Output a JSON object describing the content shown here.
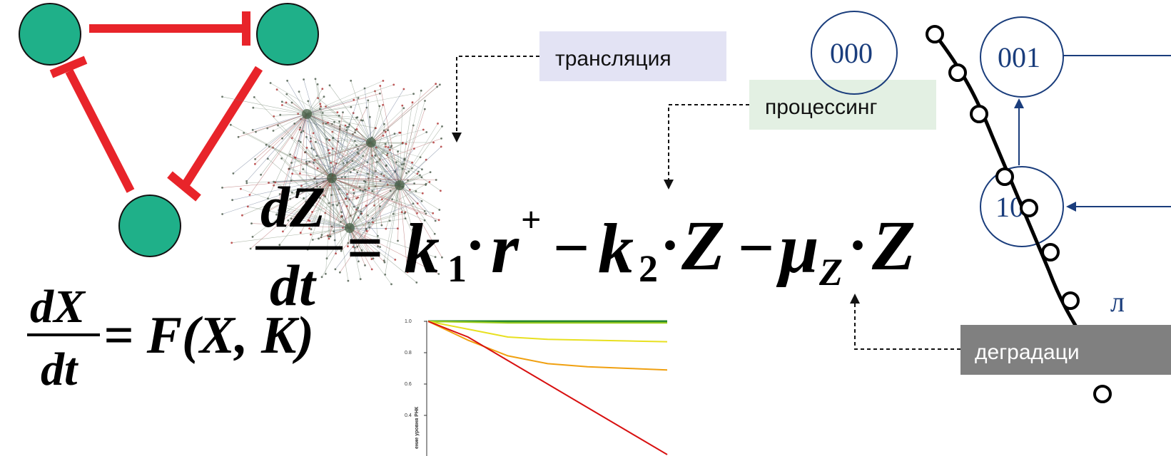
{
  "labels": {
    "translation": "трансляция",
    "processing": "процессинг",
    "degradation": "деградаци"
  },
  "equation_x": {
    "numerator": "dX",
    "denominator": "dt",
    "rhs": "= F(X, K)"
  },
  "equation_z": {
    "numerator": "dZ",
    "denominator": "dt",
    "eq": "=",
    "k1": "k",
    "k1_sub": "1",
    "r": "r",
    "r_sup": "+",
    "minus": "−",
    "k2": "k",
    "k2_sub": "2",
    "z": "Z",
    "mu": "μ",
    "mu_sub": "Z",
    "dot": "·"
  },
  "states": {
    "s000": "000",
    "s001": "001",
    "s10x": "10"
  },
  "side_text": "л",
  "colors": {
    "node_green": "#1fb089",
    "inhibit_red": "#e8242a",
    "state_blue": "#1a3d7c",
    "label_translation_bg": "#e3e3f4",
    "label_processing_bg": "#e3f0e3",
    "label_degradation_bg": "#808080"
  },
  "chart_data": {
    "type": "line",
    "ylabel": "ение уровня РНК",
    "y_ticks": [
      "1.0",
      "0.8",
      "0.6",
      "0.4"
    ],
    "ylim": [
      0.3,
      1.0
    ],
    "series": [
      {
        "color": "#2a8a2a",
        "values": [
          1.0,
          1.0,
          1.0,
          1.0,
          1.0,
          1.0,
          1.0
        ]
      },
      {
        "color": "#a0d020",
        "values": [
          1.0,
          0.995,
          0.99,
          0.99,
          0.99,
          0.99,
          0.99
        ]
      },
      {
        "color": "#e8e020",
        "values": [
          1.0,
          0.95,
          0.9,
          0.885,
          0.88,
          0.875,
          0.87
        ]
      },
      {
        "color": "#f0a010",
        "values": [
          1.0,
          0.88,
          0.78,
          0.73,
          0.71,
          0.7,
          0.69
        ]
      },
      {
        "color": "#d81010",
        "values": [
          1.0,
          0.9,
          0.75,
          0.6,
          0.45,
          0.3,
          0.15
        ]
      }
    ]
  }
}
